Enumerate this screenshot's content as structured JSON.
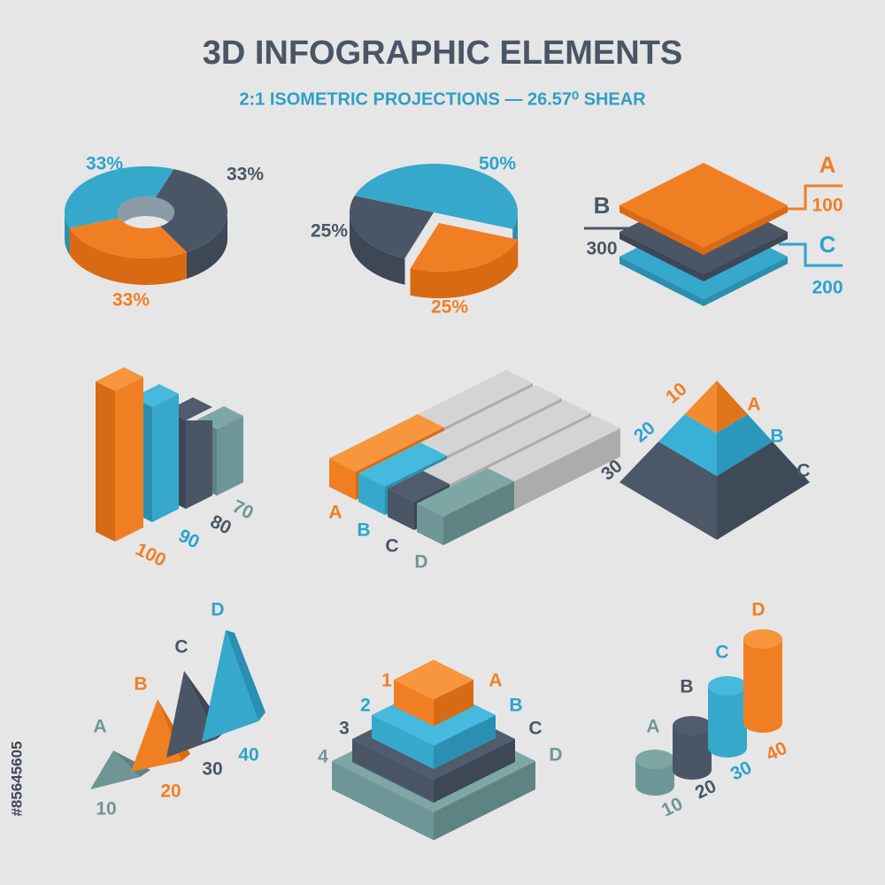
{
  "header": {
    "title": "3D INFOGRAPHIC ELEMENTS",
    "subtitle": "2:1 ISOMETRIC PROJECTIONS — 26.57⁰ SHEAR"
  },
  "stock_id": "#85645605",
  "donut": {
    "labels": [
      "33%",
      "33%",
      "33%"
    ]
  },
  "pie": {
    "labels": [
      "50%",
      "25%",
      "25%"
    ]
  },
  "layers": {
    "items": [
      {
        "letter": "A",
        "value": "100"
      },
      {
        "letter": "B",
        "value": "300"
      },
      {
        "letter": "C",
        "value": "200"
      }
    ]
  },
  "bars": {
    "labels": [
      "100",
      "90",
      "80",
      "70"
    ]
  },
  "hbars": {
    "labels": [
      "A",
      "B",
      "C",
      "D"
    ]
  },
  "pyramid": {
    "numbers": [
      "10",
      "20",
      "30"
    ],
    "letters": [
      "A",
      "B",
      "C"
    ]
  },
  "peaks": {
    "letters": [
      "A",
      "B",
      "C",
      "D"
    ],
    "numbers": [
      "10",
      "20",
      "30",
      "40"
    ]
  },
  "steps": {
    "numbers": [
      "1",
      "2",
      "3",
      "4"
    ],
    "letters": [
      "A",
      "B",
      "C",
      "D"
    ]
  },
  "cylinders": {
    "letters": [
      "A",
      "B",
      "C",
      "D"
    ],
    "numbers": [
      "10",
      "20",
      "30",
      "40"
    ]
  }
}
